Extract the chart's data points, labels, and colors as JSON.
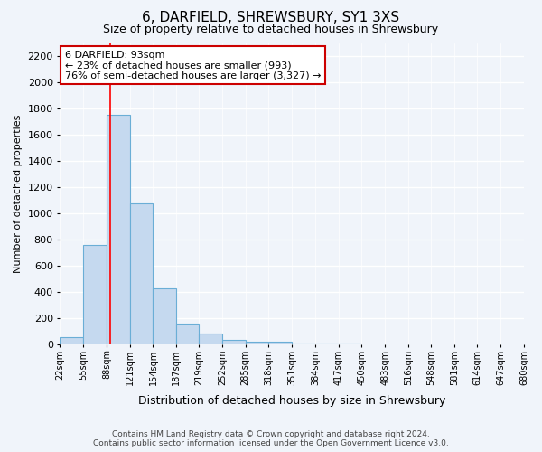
{
  "title": "6, DARFIELD, SHREWSBURY, SY1 3XS",
  "subtitle": "Size of property relative to detached houses in Shrewsbury",
  "xlabel": "Distribution of detached houses by size in Shrewsbury",
  "ylabel": "Number of detached properties",
  "annotation_line1": "6 DARFIELD: 93sqm",
  "annotation_line2": "← 23% of detached houses are smaller (993)",
  "annotation_line3": "76% of semi-detached houses are larger (3,327) →",
  "footer_line1": "Contains HM Land Registry data © Crown copyright and database right 2024.",
  "footer_line2": "Contains public sector information licensed under the Open Government Licence v3.0.",
  "bin_edges": [
    22,
    55,
    88,
    121,
    154,
    187,
    219,
    252,
    285,
    318,
    351,
    384,
    417,
    450,
    483,
    516,
    548,
    581,
    614,
    647,
    680
  ],
  "bar_heights": [
    55,
    760,
    1750,
    1075,
    430,
    155,
    80,
    35,
    20,
    20,
    8,
    5,
    3,
    0,
    0,
    0,
    0,
    0,
    0,
    0
  ],
  "bar_color": "#c5d9ef",
  "bar_edge_color": "#6aaed6",
  "red_line_x": 93,
  "ylim": [
    0,
    2300
  ],
  "yticks": [
    0,
    200,
    400,
    600,
    800,
    1000,
    1200,
    1400,
    1600,
    1800,
    2000,
    2200
  ],
  "bg_color": "#f0f4fa",
  "plot_bg_color": "#f0f4fa",
  "grid_color": "#ffffff",
  "annotation_box_facecolor": "#ffffff",
  "annotation_box_edgecolor": "#cc0000"
}
